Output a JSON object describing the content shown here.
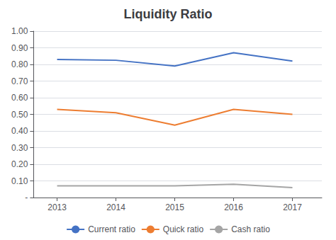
{
  "chart_data": {
    "type": "line",
    "title": "Liquidity Ratio",
    "x": [
      2013,
      2014,
      2015,
      2016,
      2017
    ],
    "series": [
      {
        "name": "Current ratio",
        "color": "#4472c4",
        "values": [
          0.83,
          0.825,
          0.79,
          0.87,
          0.82
        ]
      },
      {
        "name": "Quick ratio",
        "color": "#ed7d31",
        "values": [
          0.53,
          0.51,
          0.435,
          0.53,
          0.5
        ]
      },
      {
        "name": "Cash ratio",
        "color": "#a5a5a5",
        "values": [
          0.07,
          0.07,
          0.07,
          0.08,
          0.06
        ]
      }
    ],
    "xlim": [
      2012.6,
      2017.5
    ],
    "xticks": [
      2013,
      2014,
      2015,
      2016,
      2017
    ],
    "ylim": [
      0.0,
      1.0
    ],
    "yticks": [
      {
        "value": 0.0,
        "label": "-"
      },
      {
        "value": 0.1,
        "label": "0.10"
      },
      {
        "value": 0.2,
        "label": "0.20"
      },
      {
        "value": 0.3,
        "label": "0.30"
      },
      {
        "value": 0.4,
        "label": "0.40"
      },
      {
        "value": 0.5,
        "label": "0.50"
      },
      {
        "value": 0.6,
        "label": "0.60"
      },
      {
        "value": 0.7,
        "label": "0.70"
      },
      {
        "value": 0.8,
        "label": "0.80"
      },
      {
        "value": 0.9,
        "label": "0.90"
      },
      {
        "value": 1.0,
        "label": "1.00"
      }
    ],
    "grid": true,
    "legend": "bottom"
  }
}
